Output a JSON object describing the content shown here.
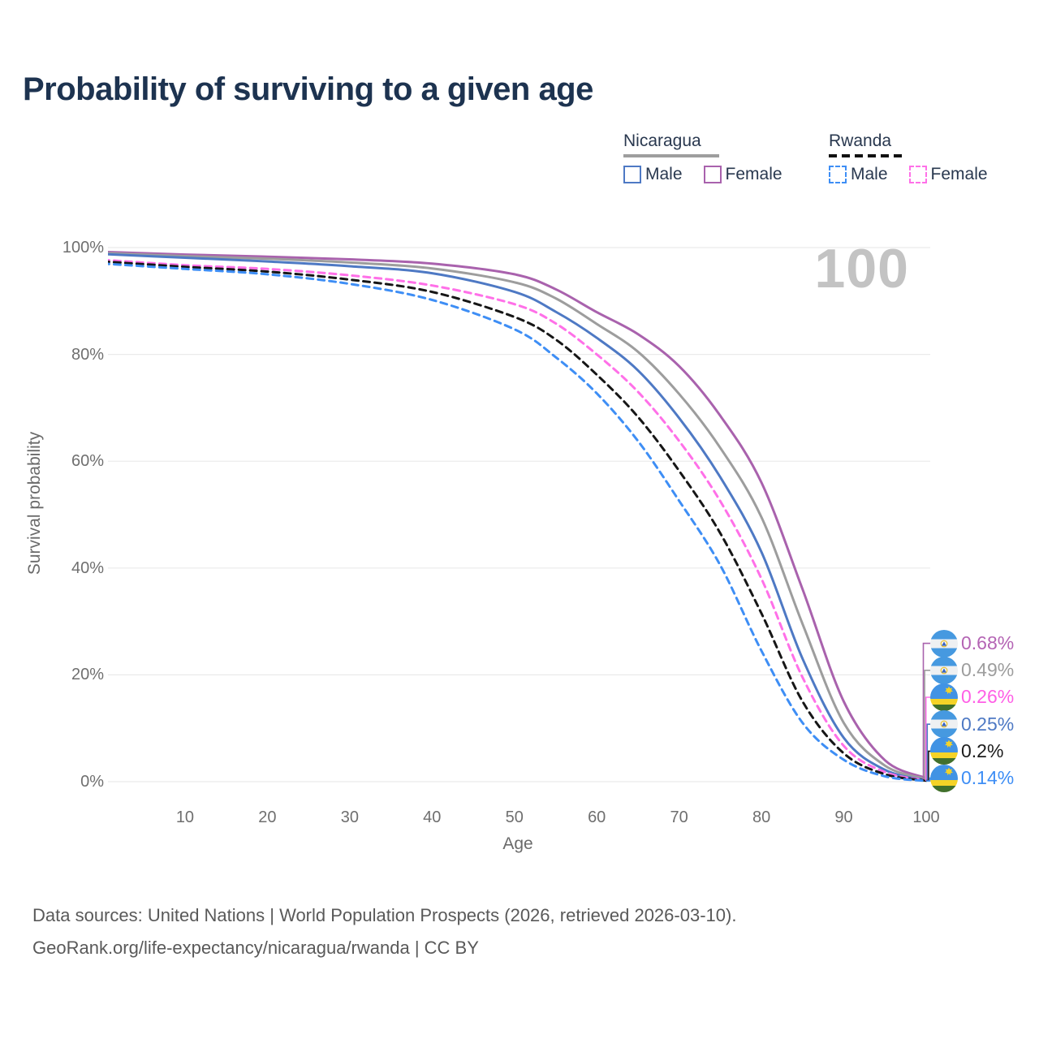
{
  "title": "Probability of surviving to a given age",
  "watermark": "100",
  "legend": {
    "groups": [
      {
        "label": "Nicaragua",
        "line_style": "solid",
        "line_color": "#9e9e9e",
        "items": [
          {
            "label": "Male",
            "color": "#4e79c4",
            "style": "solid"
          },
          {
            "label": "Female",
            "color": "#a962ad",
            "style": "solid"
          }
        ]
      },
      {
        "label": "Rwanda",
        "line_style": "dashed",
        "line_color": "#111111",
        "items": [
          {
            "label": "Male",
            "color": "#3e8ef5",
            "style": "dashed"
          },
          {
            "label": "Female",
            "color": "#ff70e8",
            "style": "dashed"
          }
        ]
      }
    ]
  },
  "chart_data": {
    "type": "line",
    "title": "Probability of surviving to a given age",
    "xlabel": "Age",
    "ylabel": "Survival probability",
    "x_range": [
      0,
      100
    ],
    "y_range_pct": [
      0,
      100
    ],
    "grid": "horizontal",
    "x_ticks": [
      10,
      20,
      30,
      40,
      50,
      60,
      70,
      80,
      90,
      100
    ],
    "y_tick_labels": [
      "100%",
      "80%",
      "60%",
      "40%",
      "20%",
      "0%"
    ],
    "y_tick_values": [
      100,
      80,
      60,
      40,
      20,
      0
    ],
    "x": [
      0,
      10,
      20,
      30,
      40,
      50,
      55,
      60,
      65,
      70,
      75,
      80,
      85,
      90,
      95,
      100
    ],
    "series": [
      {
        "name": "Nicaragua Female",
        "country": "Nicaragua",
        "sex": "Female",
        "color": "#a962ad",
        "dash": null,
        "flag": "nicaragua",
        "values": [
          99.2,
          98.7,
          98.3,
          97.8,
          97.0,
          95.0,
          92.2,
          87.9,
          83.8,
          77.8,
          68.5,
          56.0,
          36.0,
          15.0,
          4.0,
          0.68
        ],
        "end_label": "0.68%",
        "end_value": 0.68,
        "end_label_color": "#b464b4"
      },
      {
        "name": "Nicaragua",
        "country": "Nicaragua",
        "sex": "Both",
        "color": "#9d9d9d",
        "dash": null,
        "flag": "nicaragua",
        "values": [
          99.0,
          98.4,
          97.9,
          97.2,
          96.1,
          93.5,
          90.5,
          85.7,
          80.5,
          72.6,
          62.5,
          49.5,
          29.5,
          11.0,
          3.0,
          0.49
        ],
        "end_label": "0.49%",
        "end_value": 0.49,
        "end_label_color": "#9d9d9d"
      },
      {
        "name": "Nicaragua Male",
        "country": "Nicaragua",
        "sex": "Male",
        "color": "#4e79c4",
        "dash": null,
        "flag": "nicaragua",
        "values": [
          98.8,
          98.1,
          97.4,
          96.5,
          95.2,
          91.7,
          88.0,
          83.1,
          77.0,
          68.1,
          57.0,
          43.0,
          23.0,
          8.2,
          2.2,
          0.25
        ],
        "end_label": "0.25%",
        "end_value": 0.25,
        "end_label_color": "#4e79c4"
      },
      {
        "name": "Rwanda Female",
        "country": "Rwanda",
        "sex": "Female",
        "color": "#ff70e8",
        "dash": "8 6",
        "flag": "rwanda",
        "values": [
          97.7,
          96.7,
          96.0,
          94.8,
          92.9,
          89.4,
          85.8,
          80.0,
          73.0,
          63.8,
          52.5,
          38.0,
          19.5,
          6.7,
          1.8,
          0.26
        ],
        "end_label": "0.26%",
        "end_value": 0.26,
        "end_label_color": "#ff5fe6"
      },
      {
        "name": "Rwanda",
        "country": "Rwanda",
        "sex": "Both",
        "color": "#161616",
        "dash": "8 6",
        "flag": "rwanda",
        "values": [
          97.4,
          96.4,
          95.5,
          94.0,
          91.7,
          87.0,
          82.8,
          76.2,
          68.3,
          58.2,
          46.5,
          31.5,
          15.0,
          5.3,
          1.4,
          0.2
        ],
        "end_label": "0.2%",
        "end_value": 0.2,
        "end_label_color": "#1c1c1c"
      },
      {
        "name": "Rwanda Male",
        "country": "Rwanda",
        "sex": "Male",
        "color": "#3e8ef5",
        "dash": "8 6",
        "flag": "rwanda",
        "values": [
          97.0,
          96.0,
          95.0,
          93.2,
          90.2,
          84.7,
          79.5,
          72.7,
          63.8,
          52.6,
          40.5,
          24.5,
          11.0,
          4.1,
          1.0,
          0.14
        ],
        "end_label": "0.14%",
        "end_value": 0.14,
        "end_label_color": "#3e8ef5"
      }
    ],
    "legend_position": "top-right",
    "watermark_age": "100"
  },
  "footer": {
    "line1": "Data sources: United Nations | World Population Prospects (2026, retrieved 2026-03-10).",
    "line2": "GeoRank.org/life-expectancy/nicaragua/rwanda | CC BY"
  }
}
